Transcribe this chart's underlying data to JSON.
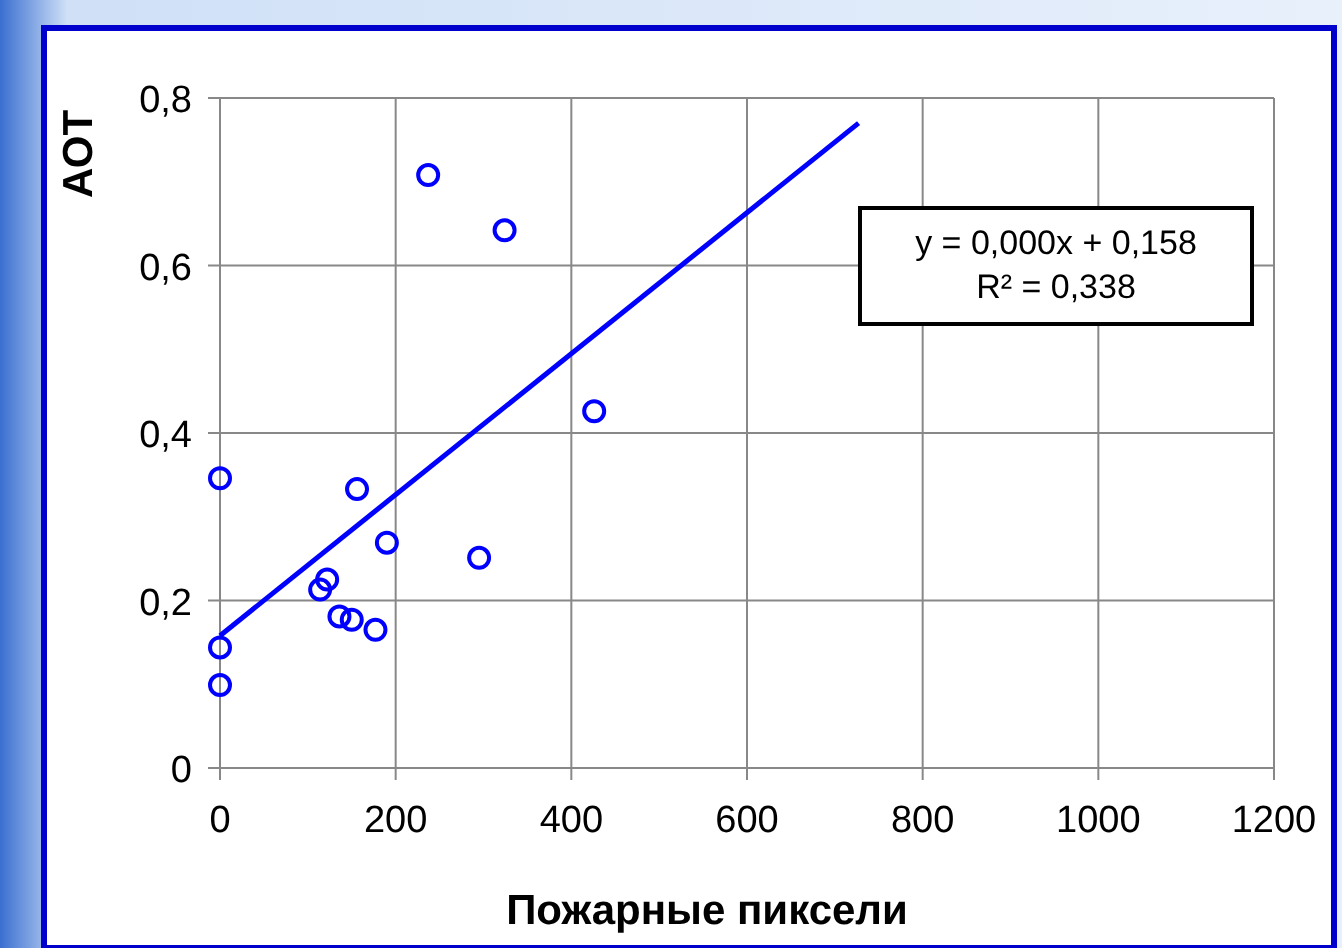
{
  "chart_data": {
    "type": "scatter",
    "xlabel": "Пожарные пиксели",
    "ylabel": "АОТ",
    "xlim": [
      0,
      1200
    ],
    "xticks": [
      0,
      200,
      400,
      600,
      800,
      1000,
      1200
    ],
    "ylim": [
      0,
      0.8
    ],
    "yticks": [
      0,
      {
        "value": 0.2,
        "label": "0,2"
      },
      {
        "value": 0.4,
        "label": "0,4"
      },
      {
        "value": 0.6,
        "label": "0,6"
      },
      {
        "value": 0.8,
        "label": "0,8"
      }
    ],
    "grid": true,
    "series": [
      {
        "color": "#0000ff",
        "marker": "circle",
        "x": [
          0,
          156,
          237,
          324,
          426,
          190,
          295,
          114,
          122,
          136,
          150,
          177,
          0,
          0
        ],
        "values": [
          0.346,
          0.333,
          0.708,
          0.642,
          0.426,
          0.269,
          0.251,
          0.213,
          0.225,
          0.181,
          0.177,
          0.165,
          0.144,
          0.099
        ]
      },
      {
        "type": "line",
        "color": "#0000ff",
        "marker": "none",
        "line_style": "solid",
        "x": [
          0,
          727
        ],
        "values": [
          0.158,
          0.77
        ]
      }
    ],
    "annotations": [
      "y = 0,000x + 0,158",
      "R² = 0,338"
    ]
  }
}
